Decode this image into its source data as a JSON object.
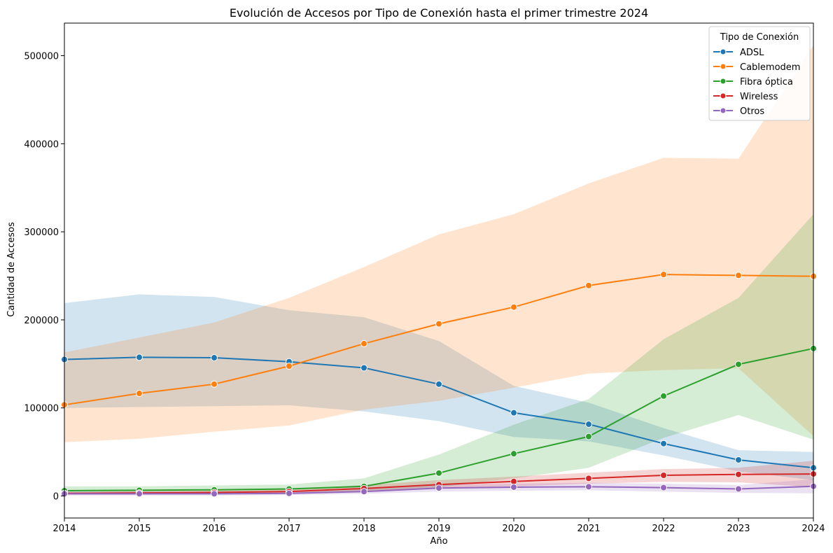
{
  "chart_data": {
    "type": "line",
    "title": "Evolución de Accesos por Tipo de Conexión hasta el primer trimestre 2024",
    "xlabel": "Año",
    "ylabel": "Cantidad de Accesos",
    "x": [
      2014,
      2015,
      2016,
      2017,
      2018,
      2019,
      2020,
      2021,
      2022,
      2023,
      2024
    ],
    "xlim": [
      2014,
      2024
    ],
    "ylim": [
      -25000,
      537000
    ],
    "yticks": [
      0,
      100000,
      200000,
      300000,
      400000,
      500000
    ],
    "xticks": [
      2014,
      2015,
      2016,
      2017,
      2018,
      2019,
      2020,
      2021,
      2022,
      2023,
      2024
    ],
    "grid": false,
    "legend": {
      "title": "Tipo de Conexión",
      "placement": "top-right"
    },
    "series": [
      {
        "name": "ADSL",
        "color": "#1f77b4",
        "values": [
          155000,
          157500,
          157000,
          152500,
          145500,
          127000,
          94500,
          81500,
          59500,
          41000,
          32000
        ],
        "ci_low": [
          100000,
          101000,
          102000,
          103000,
          96000,
          85000,
          67000,
          62000,
          46000,
          28000,
          18000
        ],
        "ci_high": [
          219000,
          229000,
          226000,
          211000,
          203000,
          176000,
          125000,
          106000,
          77000,
          52000,
          50000
        ]
      },
      {
        "name": "Cablemodem",
        "color": "#ff7f0e",
        "values": [
          103500,
          116500,
          127000,
          147500,
          173000,
          195500,
          214500,
          239000,
          251500,
          250500,
          249500
        ],
        "ci_low": [
          61000,
          65000,
          73000,
          80000,
          98000,
          108000,
          123000,
          139000,
          143000,
          145000,
          68000
        ],
        "ci_high": [
          163000,
          180000,
          197000,
          225000,
          260000,
          297000,
          320000,
          355000,
          384000,
          383000,
          512000
        ]
      },
      {
        "name": "Fibra óptica",
        "color": "#2ca02c",
        "values": [
          6000,
          6500,
          7000,
          8000,
          11000,
          26000,
          48000,
          67500,
          113500,
          149500,
          167500
        ],
        "ci_low": [
          3000,
          3500,
          4000,
          4500,
          5000,
          10000,
          20000,
          32000,
          66000,
          92000,
          64000
        ],
        "ci_high": [
          11000,
          11000,
          12000,
          13000,
          20000,
          47000,
          81000,
          110000,
          178000,
          225000,
          320000
        ]
      },
      {
        "name": "Wireless",
        "color": "#d62728",
        "values": [
          3000,
          3500,
          4000,
          5000,
          8500,
          13000,
          16500,
          20000,
          23500,
          24500,
          25000
        ],
        "ci_low": [
          1500,
          1500,
          2000,
          2500,
          4500,
          8500,
          11000,
          14000,
          16000,
          15500,
          10000
        ],
        "ci_high": [
          4500,
          5500,
          6000,
          7500,
          12500,
          18000,
          22000,
          26500,
          30500,
          32000,
          40000
        ]
      },
      {
        "name": "Otros",
        "color": "#9467bd",
        "values": [
          2500,
          2500,
          2500,
          3000,
          5000,
          9000,
          10000,
          10500,
          9500,
          8000,
          11000
        ],
        "ci_low": [
          500,
          500,
          500,
          1000,
          2500,
          5000,
          6000,
          6500,
          5000,
          3500,
          3000
        ],
        "ci_high": [
          5000,
          5000,
          5000,
          5500,
          8000,
          13000,
          14000,
          15000,
          14000,
          12500,
          19000
        ]
      }
    ]
  }
}
